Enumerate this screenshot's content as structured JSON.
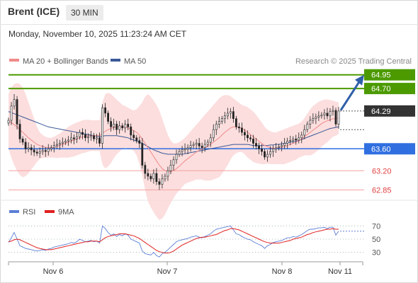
{
  "header": {
    "instrument": "Brent (ICE)",
    "timeframe": "30 MIN",
    "datetime": "Monday, November 10, 2025 11:23:24 AM CET"
  },
  "legend": {
    "bollinger_label": "MA 20 + Bollinger Bands",
    "bollinger_color": "#f08a8a",
    "ma50_label": "MA 50",
    "ma50_color": "#3b5998",
    "credit": "Research © 2025 Trading Central"
  },
  "rsi_legend": {
    "rsi_label": "RSI",
    "rsi_color": "#5b7fd6",
    "ma9_label": "9MA",
    "ma9_color": "#e02020"
  },
  "chart_data": [
    {
      "type": "line",
      "panel": "price",
      "xlabel": "",
      "ylabel": "",
      "x_ticks": [
        "Nov 6",
        "Nov 7",
        "Nov 8",
        "Nov 11"
      ],
      "ylim": [
        62.7,
        65.05
      ],
      "levels": [
        {
          "label": "64.95",
          "value": 64.95,
          "color": "#4c9a00",
          "kind": "resistance"
        },
        {
          "label": "64.70",
          "value": 64.7,
          "color": "#4c9a00",
          "kind": "resistance"
        },
        {
          "label": "64.29",
          "value": 64.29,
          "color": "#333333",
          "kind": "current"
        },
        {
          "label": "63.60",
          "value": 63.6,
          "color": "#2f6fe0",
          "kind": "pivot"
        },
        {
          "label": "63.20",
          "value": 63.2,
          "color": "#e04040",
          "kind": "support"
        },
        {
          "label": "62.85",
          "value": 62.85,
          "color": "#e04040",
          "kind": "support"
        }
      ],
      "close": [
        64.12,
        64.38,
        64.5,
        64.05,
        63.78,
        63.72,
        63.6,
        63.62,
        63.58,
        63.54,
        63.52,
        63.55,
        63.57,
        63.55,
        63.6,
        63.62,
        63.66,
        63.68,
        63.7,
        63.72,
        63.74,
        63.76,
        63.8,
        63.78,
        63.82,
        63.9,
        63.86,
        63.8,
        63.82,
        63.84,
        63.78,
        63.8,
        63.7,
        64.35,
        64.25,
        64.1,
        64.0,
        64.05,
        63.95,
        64.02,
        63.98,
        64.05,
        64.0,
        63.85,
        63.8,
        63.75,
        63.7,
        63.3,
        63.15,
        63.1,
        63.05,
        63.15,
        63.0,
        62.95,
        63.05,
        63.1,
        63.2,
        63.3,
        63.4,
        63.5,
        63.55,
        63.58,
        63.6,
        63.62,
        63.66,
        63.68,
        63.7,
        63.65,
        63.62,
        63.68,
        63.72,
        63.8,
        63.95,
        64.05,
        64.1,
        64.15,
        64.2,
        64.25,
        64.28,
        64.15,
        64.0,
        63.98,
        63.9,
        63.85,
        63.8,
        63.78,
        63.7,
        63.65,
        63.6,
        63.55,
        63.45,
        63.5,
        63.55,
        63.6,
        63.62,
        63.64,
        63.66,
        63.7,
        63.74,
        63.75,
        63.78,
        63.76,
        63.8,
        63.85,
        63.95,
        64.05,
        64.12,
        64.15,
        64.18,
        64.2,
        64.22,
        64.25,
        64.2,
        64.28,
        64.3,
        64.05,
        64.29
      ],
      "ma20": [
        64.1,
        64.08,
        64.04,
        64.0,
        63.95,
        63.9,
        63.85,
        63.8,
        63.76,
        63.72,
        63.68,
        63.66,
        63.64,
        63.63,
        63.62,
        63.62,
        63.63,
        63.64,
        63.66,
        63.68,
        63.7,
        63.72,
        63.74,
        63.76,
        63.78,
        63.8,
        63.82,
        63.83,
        63.84,
        63.84,
        63.84,
        63.84,
        63.84,
        63.88,
        63.92,
        63.95,
        63.97,
        63.99,
        64.0,
        64.0,
        64.0,
        64.0,
        63.98,
        63.96,
        63.93,
        63.9,
        63.85,
        63.78,
        63.7,
        63.62,
        63.54,
        63.46,
        63.38,
        63.3,
        63.24,
        63.2,
        63.18,
        63.18,
        63.2,
        63.24,
        63.28,
        63.33,
        63.38,
        63.42,
        63.46,
        63.5,
        63.54,
        63.57,
        63.6,
        63.62,
        63.65,
        63.68,
        63.72,
        63.76,
        63.8,
        63.85,
        63.9,
        63.94,
        63.98,
        64.0,
        64.0,
        63.99,
        63.97,
        63.94,
        63.9,
        63.86,
        63.82,
        63.78,
        63.74,
        63.7,
        63.66,
        63.64,
        63.62,
        63.61,
        63.61,
        63.62,
        63.63,
        63.64,
        63.66,
        63.68,
        63.7,
        63.72,
        63.75,
        63.78,
        63.82,
        63.86,
        63.9,
        63.94,
        63.98,
        64.02,
        64.06,
        64.09,
        64.11,
        64.13,
        64.15,
        64.15,
        64.16
      ],
      "upper_band": [
        64.6,
        64.72,
        64.78,
        64.8,
        64.78,
        64.72,
        64.6,
        64.45,
        64.3,
        64.15,
        64.0,
        63.9,
        63.85,
        63.82,
        63.8,
        63.8,
        63.82,
        63.85,
        63.88,
        63.92,
        63.96,
        64.0,
        64.03,
        64.06,
        64.08,
        64.1,
        64.12,
        64.13,
        64.13,
        64.12,
        64.12,
        64.12,
        64.12,
        64.45,
        64.6,
        64.62,
        64.6,
        64.55,
        64.5,
        64.45,
        64.4,
        64.38,
        64.35,
        64.32,
        64.3,
        64.32,
        64.38,
        64.45,
        64.55,
        64.6,
        64.55,
        64.48,
        64.4,
        64.3,
        64.15,
        64.0,
        63.85,
        63.75,
        63.7,
        63.7,
        63.72,
        63.76,
        63.8,
        63.86,
        63.92,
        63.98,
        64.04,
        64.1,
        64.16,
        64.22,
        64.28,
        64.34,
        64.4,
        64.46,
        64.52,
        64.56,
        64.58,
        64.58,
        64.56,
        64.52,
        64.48,
        64.44,
        64.4,
        64.38,
        64.36,
        64.32,
        64.28,
        64.22,
        64.15,
        64.08,
        64.0,
        63.95,
        63.92,
        63.9,
        63.9,
        63.92,
        63.94,
        63.96,
        63.98,
        64.0,
        64.02,
        64.04,
        64.06,
        64.1,
        64.16,
        64.24,
        64.32,
        64.38,
        64.42,
        64.46,
        64.48,
        64.5,
        64.5,
        64.49,
        64.48,
        64.46,
        64.45
      ],
      "lower_band": [
        63.6,
        63.44,
        63.3,
        63.2,
        63.12,
        63.08,
        63.1,
        63.15,
        63.22,
        63.29,
        63.36,
        63.42,
        63.43,
        63.44,
        63.44,
        63.44,
        63.44,
        63.43,
        63.44,
        63.44,
        63.44,
        63.44,
        63.45,
        63.46,
        63.48,
        63.5,
        63.52,
        63.53,
        63.55,
        63.56,
        63.56,
        63.56,
        63.56,
        63.31,
        63.24,
        63.28,
        63.34,
        63.43,
        63.5,
        63.55,
        63.6,
        63.62,
        63.61,
        63.6,
        63.56,
        63.48,
        63.32,
        63.11,
        62.85,
        62.64,
        62.53,
        62.44,
        62.36,
        62.3,
        62.33,
        62.4,
        62.51,
        62.61,
        62.7,
        62.78,
        62.84,
        62.9,
        62.96,
        62.98,
        63.0,
        63.02,
        63.04,
        63.04,
        63.04,
        63.02,
        63.02,
        63.02,
        63.04,
        63.06,
        63.08,
        63.14,
        63.22,
        63.3,
        63.4,
        63.48,
        63.52,
        63.54,
        63.54,
        63.5,
        63.44,
        63.4,
        63.36,
        63.34,
        63.33,
        63.32,
        63.32,
        63.33,
        63.32,
        63.32,
        63.32,
        63.32,
        63.32,
        63.32,
        63.34,
        63.36,
        63.38,
        63.4,
        63.44,
        63.46,
        63.48,
        63.48,
        63.48,
        63.5,
        63.54,
        63.58,
        63.64,
        63.68,
        63.72,
        63.77,
        63.82,
        63.84,
        63.87
      ],
      "ma50": [
        64.28,
        64.26,
        64.24,
        64.22,
        64.2,
        64.18,
        64.16,
        64.14,
        64.12,
        64.1,
        64.08,
        64.06,
        64.04,
        64.02,
        64.0,
        63.99,
        63.98,
        63.97,
        63.96,
        63.95,
        63.94,
        63.93,
        63.92,
        63.91,
        63.9,
        63.89,
        63.88,
        63.87,
        63.86,
        63.85,
        63.84,
        63.83,
        63.82,
        63.83,
        63.84,
        63.84,
        63.84,
        63.84,
        63.84,
        63.83,
        63.82,
        63.81,
        63.8,
        63.78,
        63.76,
        63.74,
        63.72,
        63.7,
        63.67,
        63.64,
        63.61,
        63.58,
        63.56,
        63.54,
        63.52,
        63.51,
        63.5,
        63.5,
        63.5,
        63.5,
        63.5,
        63.5,
        63.51,
        63.52,
        63.53,
        63.54,
        63.55,
        63.56,
        63.57,
        63.58,
        63.59,
        63.6,
        63.61,
        63.62,
        63.63,
        63.64,
        63.65,
        63.66,
        63.67,
        63.68,
        63.68,
        63.68,
        63.68,
        63.68,
        63.68,
        63.67,
        63.66,
        63.66,
        63.66,
        63.66,
        63.66,
        63.66,
        63.67,
        63.67,
        63.68,
        63.68,
        63.69,
        63.7,
        63.71,
        63.72,
        63.73,
        63.74,
        63.75,
        63.77,
        63.79,
        63.81,
        63.83,
        63.85,
        63.87,
        63.89,
        63.91,
        63.93,
        63.95,
        63.97,
        63.98,
        63.99,
        64.0
      ]
    },
    {
      "type": "line",
      "panel": "rsi",
      "xlabel": "",
      "ylabel": "",
      "y_ticks": [
        70,
        50,
        30
      ],
      "ylim": [
        20,
        80
      ],
      "series": [
        {
          "name": "RSI",
          "values": [
            45,
            52,
            60,
            50,
            40,
            38,
            36,
            35,
            34,
            33,
            32,
            33,
            34,
            33,
            35,
            36,
            38,
            39,
            40,
            41,
            42,
            43,
            45,
            44,
            46,
            50,
            48,
            46,
            47,
            48,
            46,
            47,
            44,
            70,
            66,
            60,
            56,
            58,
            54,
            57,
            55,
            58,
            56,
            50,
            48,
            46,
            44,
            32,
            28,
            27,
            26,
            30,
            25,
            23,
            28,
            30,
            34,
            38,
            42,
            46,
            48,
            49,
            50,
            51,
            53,
            54,
            55,
            53,
            52,
            54,
            56,
            58,
            62,
            65,
            66,
            67,
            68,
            69,
            70,
            64,
            58,
            57,
            54,
            52,
            50,
            49,
            46,
            44,
            42,
            40,
            36,
            40,
            42,
            45,
            46,
            47,
            48,
            50,
            52,
            52,
            54,
            53,
            55,
            57,
            60,
            63,
            65,
            65,
            66,
            67,
            67,
            68,
            66,
            68,
            68,
            56,
            62
          ]
        },
        {
          "name": "9MA",
          "values": [
            46,
            47,
            49,
            50,
            49,
            47,
            45,
            43,
            41,
            39,
            37,
            36,
            35,
            34,
            34,
            34,
            35,
            36,
            37,
            38,
            39,
            40,
            41,
            42,
            43,
            44,
            45,
            46,
            46,
            47,
            47,
            47,
            46,
            49,
            52,
            54,
            55,
            56,
            57,
            58,
            58,
            58,
            57,
            56,
            55,
            53,
            51,
            48,
            45,
            42,
            39,
            36,
            33,
            31,
            30,
            29,
            29,
            30,
            32,
            35,
            38,
            41,
            43,
            45,
            47,
            49,
            51,
            52,
            53,
            53,
            54,
            55,
            56,
            57,
            59,
            61,
            63,
            64,
            66,
            66,
            65,
            64,
            62,
            60,
            58,
            56,
            54,
            52,
            50,
            48,
            46,
            45,
            44,
            44,
            44,
            44,
            45,
            46,
            47,
            48,
            50,
            51,
            52,
            53,
            55,
            57,
            58,
            60,
            61,
            62,
            63,
            64,
            65,
            65,
            66,
            65,
            65
          ]
        }
      ]
    }
  ]
}
